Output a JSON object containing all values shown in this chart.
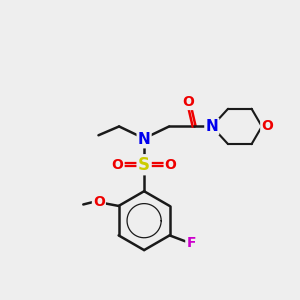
{
  "bg_color": "#eeeeee",
  "bond_color": "#1a1a1a",
  "bond_width": 1.8,
  "atom_colors": {
    "N": "#0000ee",
    "O": "#ee0000",
    "S": "#cccc00",
    "F": "#cc00cc",
    "C": "#1a1a1a"
  },
  "font_size": 10,
  "xlim": [
    0,
    10
  ],
  "ylim": [
    0,
    10
  ]
}
